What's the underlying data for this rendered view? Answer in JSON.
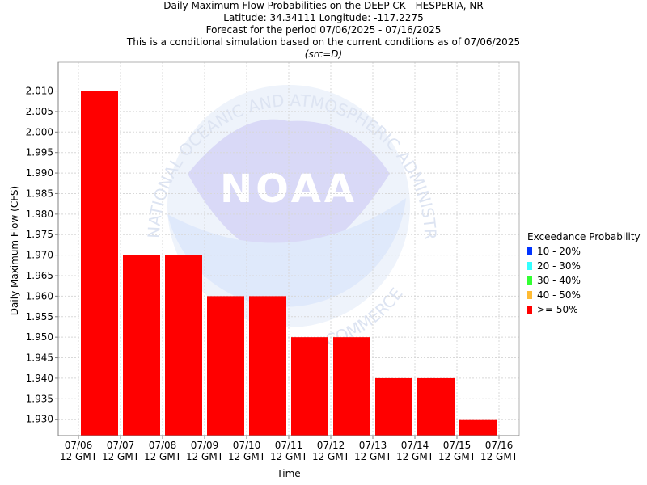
{
  "chart_data": {
    "type": "bar",
    "title": "Daily Maximum Flow Probabilities on the DEEP CK - HESPERIA, NR",
    "subtitle_lines": [
      "Latitude: 34.34111 Longitude: -117.2275",
      "Forecast for the period 07/06/2025 - 07/16/2025",
      "This is a conditional simulation based on the current conditions as of 07/06/2025"
    ],
    "source_note": "(src=D)",
    "xlabel": "Time",
    "ylabel": "Daily Maximum Flow (CFS)",
    "ylim": [
      1.926,
      2.017
    ],
    "yticks": [
      "1.930",
      "1.935",
      "1.940",
      "1.945",
      "1.950",
      "1.955",
      "1.960",
      "1.965",
      "1.970",
      "1.975",
      "1.980",
      "1.985",
      "1.990",
      "1.995",
      "2.000",
      "2.005",
      "2.010"
    ],
    "xticks": [
      {
        "date": "07/06",
        "time": "12 GMT"
      },
      {
        "date": "07/07",
        "time": "12 GMT"
      },
      {
        "date": "07/08",
        "time": "12 GMT"
      },
      {
        "date": "07/09",
        "time": "12 GMT"
      },
      {
        "date": "07/10",
        "time": "12 GMT"
      },
      {
        "date": "07/11",
        "time": "12 GMT"
      },
      {
        "date": "07/12",
        "time": "12 GMT"
      },
      {
        "date": "07/13",
        "time": "12 GMT"
      },
      {
        "date": "07/14",
        "time": "12 GMT"
      },
      {
        "date": "07/15",
        "time": "12 GMT"
      },
      {
        "date": "07/16",
        "time": "12 GMT"
      }
    ],
    "series": [
      {
        "name": ">= 50%",
        "color": "#ff0000",
        "values": [
          2.01,
          1.97,
          1.97,
          1.96,
          1.96,
          1.95,
          1.95,
          1.94,
          1.94,
          1.93
        ]
      }
    ],
    "grid": true,
    "legend": {
      "title": "Exceedance Probability",
      "placement": "right",
      "items": [
        {
          "label": "10 - 20%",
          "color": "#0033ff"
        },
        {
          "label": "20 - 30%",
          "color": "#33ffff"
        },
        {
          "label": "30 - 40%",
          "color": "#33ff33"
        },
        {
          "label": "40 - 50%",
          "color": "#ffbb33"
        },
        {
          "label": ">= 50%",
          "color": "#ff0000"
        }
      ]
    },
    "watermark": {
      "text": "NOAA",
      "ring_text_top": "NATIONAL OCEANIC AND ATMOSPHERIC ADMINISTRATION",
      "ring_text_bottom": "COMMERCE"
    }
  }
}
